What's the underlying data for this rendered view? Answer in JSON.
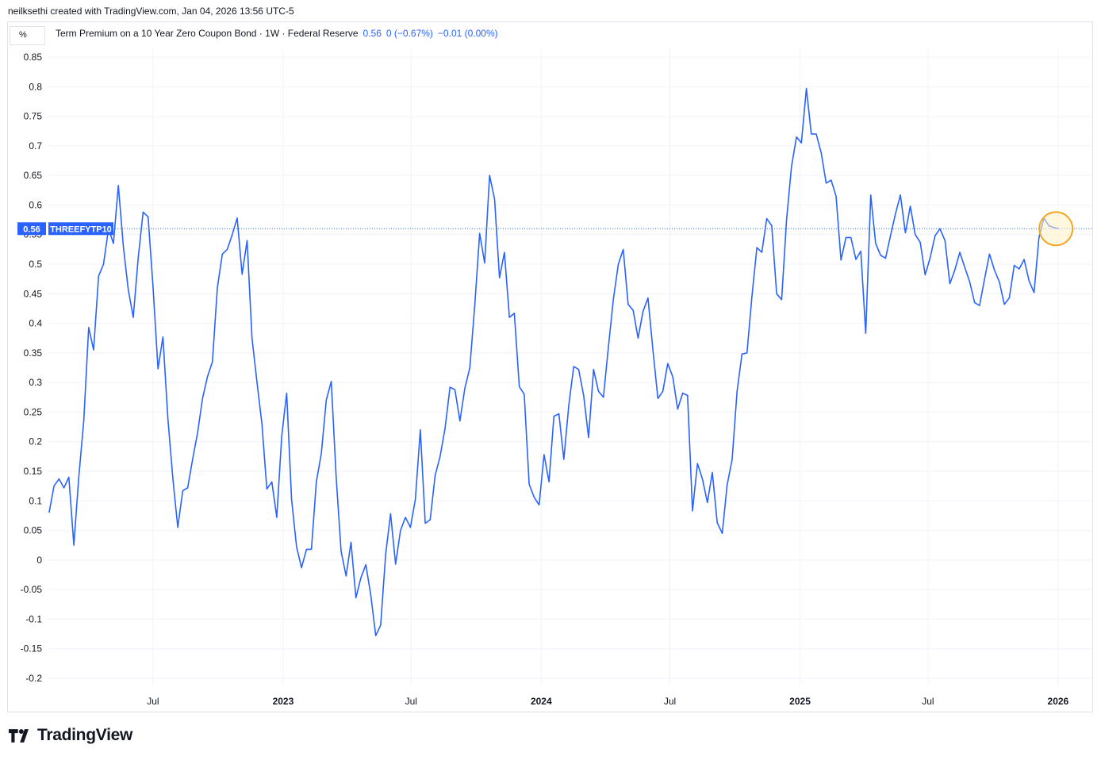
{
  "header": {
    "attribution": "neilksethi created with TradingView.com, Jan 04, 2026 13:56 UTC-5"
  },
  "legend": {
    "title": "Term Premium on a 10 Year Zero Coupon Bond · 1W · Federal Reserve",
    "value": "0.56",
    "change": "0 (−0.67%)",
    "change2": "−0.01 (0.00%)"
  },
  "unit_button": "%",
  "brand": {
    "name": "TradingView",
    "logo_icon": "tradingview-logo-icon"
  },
  "colors": {
    "line": "#2962ff",
    "grid": "#f0f3fa",
    "axis_text": "#131722",
    "highlight_stroke": "#f5a623",
    "highlight_fill": "#fff3c4"
  },
  "chart_data": {
    "type": "line",
    "title": "Term Premium on a 10 Year Zero Coupon Bond",
    "ylabel": "%",
    "ylim": [
      -0.2,
      0.85
    ],
    "y_ticks": [
      0.85,
      0.8,
      0.75,
      0.7,
      0.65,
      0.6,
      0.55,
      0.5,
      0.45,
      0.4,
      0.35,
      0.3,
      0.25,
      0.2,
      0.15,
      0.1,
      0.05,
      0,
      -0.05,
      -0.1,
      -0.15,
      -0.2
    ],
    "y_tick_labels": [
      "0.85",
      "0.8",
      "0.75",
      "0.7",
      "0.65",
      "0.6",
      "0.55",
      "0.5",
      "0.45",
      "0.4",
      "0.35",
      "0.3",
      "0.25",
      "0.2",
      "0.15",
      "0.1",
      "0.05",
      "0",
      "-0.05",
      "-0.1",
      "-0.15",
      "-0.2"
    ],
    "x_ticks": [
      {
        "label": "Jul",
        "date": "2022-07-01"
      },
      {
        "label": "2023",
        "date": "2023-01-01"
      },
      {
        "label": "Jul",
        "date": "2023-07-01"
      },
      {
        "label": "2024",
        "date": "2024-01-01"
      },
      {
        "label": "Jul",
        "date": "2024-07-01"
      },
      {
        "label": "2025",
        "date": "2025-01-01"
      },
      {
        "label": "Jul",
        "date": "2025-07-01"
      },
      {
        "label": "2026",
        "date": "2026-01-01"
      }
    ],
    "xlim": [
      "2022-02-03",
      "2026-02-15"
    ],
    "last_value_label": {
      "value": "0.56",
      "name": "THREEFYTP10"
    },
    "series": [
      {
        "values": [
          [
            "2022-02-04",
            0.08
          ],
          [
            "2022-02-11",
            0.125
          ],
          [
            "2022-02-18",
            0.137
          ],
          [
            "2022-02-25",
            0.122
          ],
          [
            "2022-03-04",
            0.14
          ],
          [
            "2022-03-11",
            0.025
          ],
          [
            "2022-03-18",
            0.14
          ],
          [
            "2022-03-25",
            0.235
          ],
          [
            "2022-04-01",
            0.393
          ],
          [
            "2022-04-08",
            0.355
          ],
          [
            "2022-04-15",
            0.48
          ],
          [
            "2022-04-22",
            0.5
          ],
          [
            "2022-04-29",
            0.56
          ],
          [
            "2022-05-06",
            0.535
          ],
          [
            "2022-05-13",
            0.633
          ],
          [
            "2022-05-20",
            0.53
          ],
          [
            "2022-05-27",
            0.457
          ],
          [
            "2022-06-03",
            0.41
          ],
          [
            "2022-06-10",
            0.51
          ],
          [
            "2022-06-17",
            0.588
          ],
          [
            "2022-06-24",
            0.58
          ],
          [
            "2022-07-01",
            0.462
          ],
          [
            "2022-07-08",
            0.323
          ],
          [
            "2022-07-15",
            0.377
          ],
          [
            "2022-07-22",
            0.24
          ],
          [
            "2022-07-29",
            0.138
          ],
          [
            "2022-08-05",
            0.055
          ],
          [
            "2022-08-12",
            0.117
          ],
          [
            "2022-08-19",
            0.122
          ],
          [
            "2022-08-26",
            0.17
          ],
          [
            "2022-09-02",
            0.215
          ],
          [
            "2022-09-09",
            0.273
          ],
          [
            "2022-09-16",
            0.31
          ],
          [
            "2022-09-23",
            0.335
          ],
          [
            "2022-09-30",
            0.46
          ],
          [
            "2022-10-07",
            0.517
          ],
          [
            "2022-10-14",
            0.525
          ],
          [
            "2022-10-21",
            0.55
          ],
          [
            "2022-10-28",
            0.578
          ],
          [
            "2022-11-04",
            0.483
          ],
          [
            "2022-11-11",
            0.54
          ],
          [
            "2022-11-18",
            0.375
          ],
          [
            "2022-11-25",
            0.3
          ],
          [
            "2022-12-02",
            0.23
          ],
          [
            "2022-12-09",
            0.12
          ],
          [
            "2022-12-16",
            0.132
          ],
          [
            "2022-12-23",
            0.072
          ],
          [
            "2022-12-30",
            0.21
          ],
          [
            "2023-01-06",
            0.282
          ],
          [
            "2023-01-13",
            0.102
          ],
          [
            "2023-01-20",
            0.022
          ],
          [
            "2023-01-27",
            -0.013
          ],
          [
            "2023-02-03",
            0.018
          ],
          [
            "2023-02-10",
            0.018
          ],
          [
            "2023-02-17",
            0.132
          ],
          [
            "2023-02-24",
            0.18
          ],
          [
            "2023-03-03",
            0.27
          ],
          [
            "2023-03-10",
            0.302
          ],
          [
            "2023-03-17",
            0.14
          ],
          [
            "2023-03-24",
            0.015
          ],
          [
            "2023-03-31",
            -0.027
          ],
          [
            "2023-04-07",
            0.03
          ],
          [
            "2023-04-14",
            -0.064
          ],
          [
            "2023-04-21",
            -0.03
          ],
          [
            "2023-04-28",
            -0.008
          ],
          [
            "2023-05-05",
            -0.06
          ],
          [
            "2023-05-12",
            -0.128
          ],
          [
            "2023-05-19",
            -0.11
          ],
          [
            "2023-05-26",
            0.01
          ],
          [
            "2023-06-02",
            0.078
          ],
          [
            "2023-06-09",
            -0.007
          ],
          [
            "2023-06-16",
            0.05
          ],
          [
            "2023-06-23",
            0.072
          ],
          [
            "2023-06-30",
            0.055
          ],
          [
            "2023-07-07",
            0.102
          ],
          [
            "2023-07-14",
            0.22
          ],
          [
            "2023-07-21",
            0.062
          ],
          [
            "2023-07-28",
            0.068
          ],
          [
            "2023-08-04",
            0.143
          ],
          [
            "2023-08-11",
            0.175
          ],
          [
            "2023-08-18",
            0.223
          ],
          [
            "2023-08-25",
            0.292
          ],
          [
            "2023-09-01",
            0.288
          ],
          [
            "2023-09-08",
            0.235
          ],
          [
            "2023-09-15",
            0.29
          ],
          [
            "2023-09-22",
            0.325
          ],
          [
            "2023-09-29",
            0.43
          ],
          [
            "2023-10-06",
            0.552
          ],
          [
            "2023-10-13",
            0.502
          ],
          [
            "2023-10-20",
            0.65
          ],
          [
            "2023-10-27",
            0.61
          ],
          [
            "2023-11-03",
            0.477
          ],
          [
            "2023-11-10",
            0.52
          ],
          [
            "2023-11-17",
            0.41
          ],
          [
            "2023-11-24",
            0.417
          ],
          [
            "2023-12-01",
            0.293
          ],
          [
            "2023-12-08",
            0.28
          ],
          [
            "2023-12-15",
            0.128
          ],
          [
            "2023-12-22",
            0.106
          ],
          [
            "2023-12-29",
            0.093
          ],
          [
            "2024-01-05",
            0.178
          ],
          [
            "2024-01-12",
            0.132
          ],
          [
            "2024-01-19",
            0.243
          ],
          [
            "2024-01-26",
            0.247
          ],
          [
            "2024-02-02",
            0.17
          ],
          [
            "2024-02-09",
            0.262
          ],
          [
            "2024-02-16",
            0.327
          ],
          [
            "2024-02-23",
            0.322
          ],
          [
            "2024-03-01",
            0.278
          ],
          [
            "2024-03-08",
            0.207
          ],
          [
            "2024-03-15",
            0.322
          ],
          [
            "2024-03-22",
            0.285
          ],
          [
            "2024-03-29",
            0.275
          ],
          [
            "2024-04-05",
            0.36
          ],
          [
            "2024-04-12",
            0.44
          ],
          [
            "2024-04-19",
            0.5
          ],
          [
            "2024-04-26",
            0.525
          ],
          [
            "2024-05-03",
            0.432
          ],
          [
            "2024-05-10",
            0.422
          ],
          [
            "2024-05-17",
            0.375
          ],
          [
            "2024-05-24",
            0.42
          ],
          [
            "2024-05-31",
            0.443
          ],
          [
            "2024-06-07",
            0.355
          ],
          [
            "2024-06-14",
            0.273
          ],
          [
            "2024-06-21",
            0.285
          ],
          [
            "2024-06-28",
            0.332
          ],
          [
            "2024-07-05",
            0.31
          ],
          [
            "2024-07-12",
            0.255
          ],
          [
            "2024-07-19",
            0.282
          ],
          [
            "2024-07-26",
            0.278
          ],
          [
            "2024-08-02",
            0.083
          ],
          [
            "2024-08-09",
            0.163
          ],
          [
            "2024-08-16",
            0.137
          ],
          [
            "2024-08-23",
            0.097
          ],
          [
            "2024-08-30",
            0.148
          ],
          [
            "2024-09-06",
            0.063
          ],
          [
            "2024-09-13",
            0.045
          ],
          [
            "2024-09-20",
            0.127
          ],
          [
            "2024-09-27",
            0.17
          ],
          [
            "2024-10-04",
            0.285
          ],
          [
            "2024-10-11",
            0.348
          ],
          [
            "2024-10-18",
            0.35
          ],
          [
            "2024-10-25",
            0.445
          ],
          [
            "2024-11-01",
            0.528
          ],
          [
            "2024-11-08",
            0.52
          ],
          [
            "2024-11-15",
            0.577
          ],
          [
            "2024-11-22",
            0.565
          ],
          [
            "2024-11-29",
            0.45
          ],
          [
            "2024-12-06",
            0.44
          ],
          [
            "2024-12-13",
            0.575
          ],
          [
            "2024-12-20",
            0.665
          ],
          [
            "2024-12-27",
            0.715
          ],
          [
            "2025-01-03",
            0.705
          ],
          [
            "2025-01-10",
            0.797
          ],
          [
            "2025-01-17",
            0.72
          ],
          [
            "2025-01-24",
            0.72
          ],
          [
            "2025-01-31",
            0.688
          ],
          [
            "2025-02-07",
            0.637
          ],
          [
            "2025-02-14",
            0.642
          ],
          [
            "2025-02-21",
            0.615
          ],
          [
            "2025-02-28",
            0.507
          ],
          [
            "2025-03-07",
            0.545
          ],
          [
            "2025-03-14",
            0.545
          ],
          [
            "2025-03-21",
            0.508
          ],
          [
            "2025-03-28",
            0.522
          ],
          [
            "2025-04-04",
            0.383
          ],
          [
            "2025-04-11",
            0.617
          ],
          [
            "2025-04-18",
            0.535
          ],
          [
            "2025-04-25",
            0.515
          ],
          [
            "2025-05-02",
            0.51
          ],
          [
            "2025-05-09",
            0.548
          ],
          [
            "2025-05-16",
            0.585
          ],
          [
            "2025-05-23",
            0.617
          ],
          [
            "2025-05-30",
            0.553
          ],
          [
            "2025-06-06",
            0.598
          ],
          [
            "2025-06-13",
            0.55
          ],
          [
            "2025-06-20",
            0.537
          ],
          [
            "2025-06-27",
            0.482
          ],
          [
            "2025-07-04",
            0.51
          ],
          [
            "2025-07-11",
            0.548
          ],
          [
            "2025-07-18",
            0.56
          ],
          [
            "2025-07-25",
            0.54
          ],
          [
            "2025-08-01",
            0.467
          ],
          [
            "2025-08-08",
            0.49
          ],
          [
            "2025-08-15",
            0.52
          ],
          [
            "2025-08-22",
            0.495
          ],
          [
            "2025-08-29",
            0.47
          ],
          [
            "2025-09-05",
            0.435
          ],
          [
            "2025-09-12",
            0.43
          ],
          [
            "2025-09-19",
            0.475
          ],
          [
            "2025-09-26",
            0.517
          ],
          [
            "2025-10-03",
            0.49
          ],
          [
            "2025-10-10",
            0.47
          ],
          [
            "2025-10-17",
            0.432
          ],
          [
            "2025-10-24",
            0.443
          ],
          [
            "2025-10-31",
            0.498
          ],
          [
            "2025-11-07",
            0.492
          ],
          [
            "2025-11-14",
            0.508
          ],
          [
            "2025-11-21",
            0.472
          ],
          [
            "2025-11-28",
            0.452
          ],
          [
            "2025-12-05",
            0.545
          ],
          [
            "2025-12-12",
            0.578
          ],
          [
            "2025-12-19",
            0.565
          ],
          [
            "2025-12-26",
            0.562
          ],
          [
            "2026-01-02",
            0.56
          ]
        ]
      }
    ],
    "grid": true,
    "highlight": {
      "date": "2025-12-29",
      "value": 0.56
    }
  }
}
